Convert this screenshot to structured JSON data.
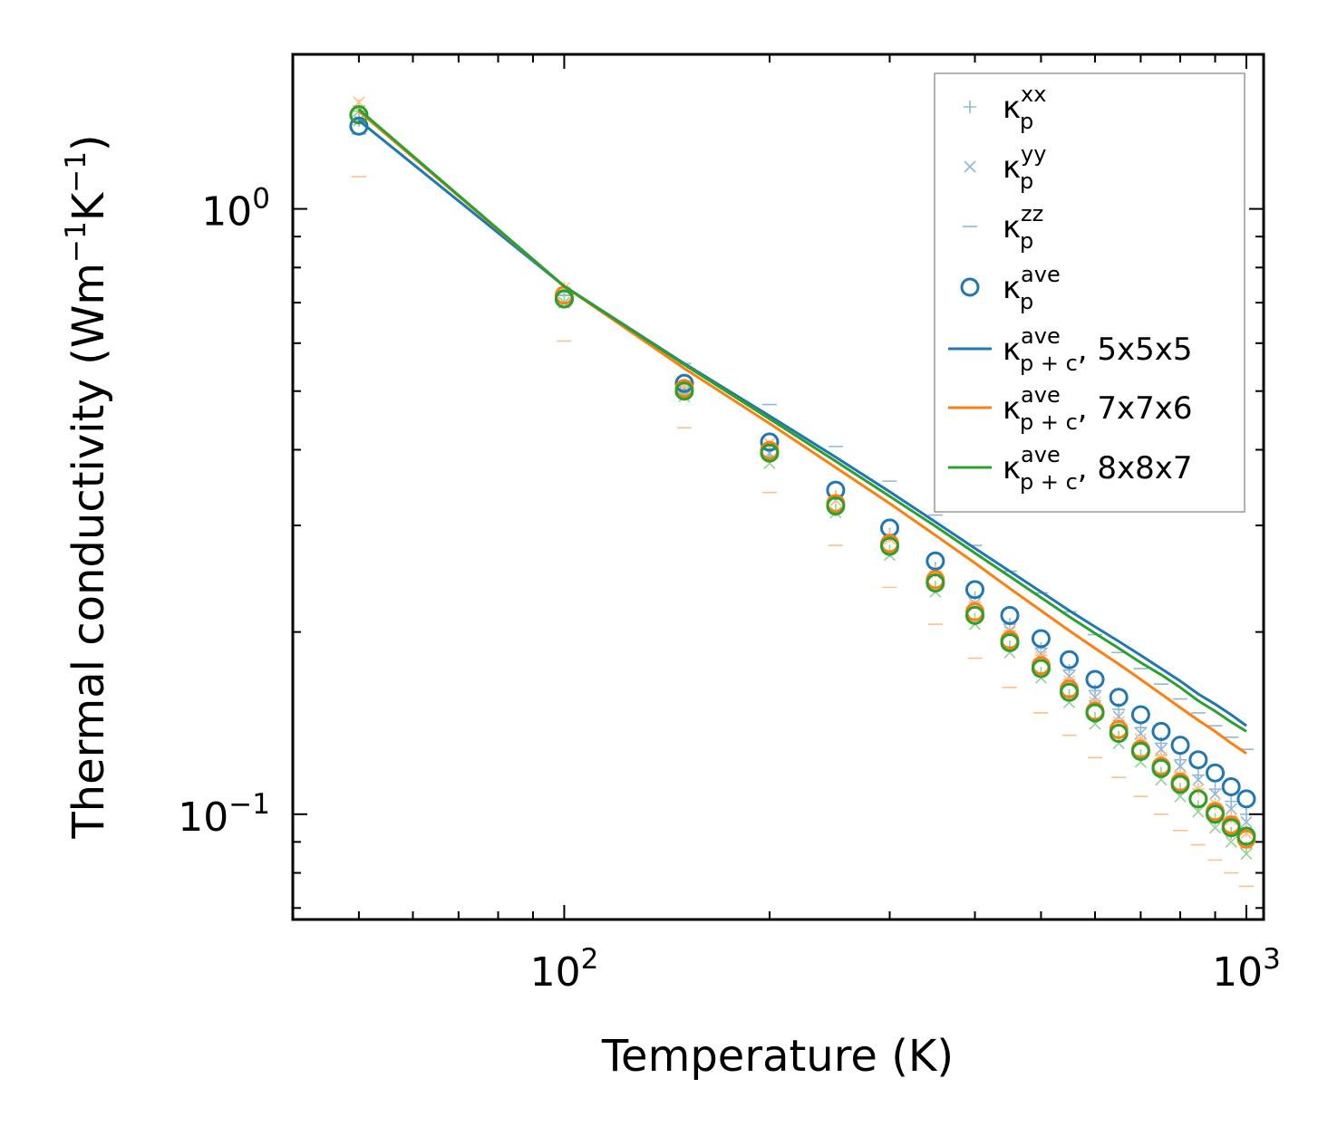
{
  "chart_data": {
    "type": "scatter",
    "xscale": "log",
    "yscale": "log",
    "xlabel": "Temperature (K)",
    "ylabel": {
      "text": "Thermal conductivity (Wm",
      "exp1": "−1",
      "mid": "K",
      "exp2": "−1",
      "close": ")"
    },
    "xlim": [
      40,
      1060
    ],
    "ylim": [
      0.067,
      1.8
    ],
    "x_ticks": [
      {
        "value": 100,
        "base": "10",
        "exp": "2"
      },
      {
        "value": 1000,
        "base": "10",
        "exp": "3"
      }
    ],
    "y_ticks": [
      {
        "value": 1.0,
        "base": "10",
        "exp": "0"
      },
      {
        "value": 0.1,
        "base": "10",
        "exp": "−1"
      }
    ],
    "temperatures": [
      50,
      100,
      150,
      200,
      250,
      300,
      350,
      400,
      450,
      500,
      550,
      600,
      650,
      700,
      750,
      800,
      850,
      900,
      950,
      1000
    ],
    "colors": {
      "blue": "#1f77b4",
      "orange": "#ff7f0e",
      "green": "#2ca02c",
      "blue_light": "#8fb8d9",
      "orange_light": "#ffbf86",
      "green_light": "#95d095"
    },
    "scatter": [
      {
        "component": "xx",
        "marker": "plus",
        "color": "#8fb8d9",
        "values": [
          1.4,
          0.72,
          0.505,
          0.4,
          0.335,
          0.29,
          0.255,
          0.228,
          0.206,
          0.188,
          0.173,
          0.16,
          0.149,
          0.139,
          0.131,
          0.123,
          0.116,
          0.11,
          0.105,
          0.1
        ]
      },
      {
        "component": "xx",
        "marker": "plus",
        "color": "#ffbf86",
        "values": [
          1.48,
          0.74,
          0.51,
          0.405,
          0.335,
          0.288,
          0.252,
          0.224,
          0.201,
          0.183,
          0.167,
          0.154,
          0.143,
          0.133,
          0.125,
          0.117,
          0.11,
          0.104,
          0.099,
          0.094
        ]
      },
      {
        "component": "xx",
        "marker": "plus",
        "color": "#95d095",
        "values": [
          1.45,
          0.72,
          0.495,
          0.39,
          0.318,
          0.272,
          0.237,
          0.21,
          0.189,
          0.171,
          0.157,
          0.144,
          0.134,
          0.125,
          0.117,
          0.11,
          0.103,
          0.098,
          0.093,
          0.088
        ]
      },
      {
        "component": "yy",
        "marker": "x",
        "color": "#8fb8d9",
        "values": [
          1.4,
          0.7,
          0.5,
          0.395,
          0.33,
          0.285,
          0.25,
          0.223,
          0.201,
          0.184,
          0.169,
          0.156,
          0.145,
          0.136,
          0.128,
          0.12,
          0.114,
          0.108,
          0.102,
          0.097
        ]
      },
      {
        "component": "yy",
        "marker": "x",
        "color": "#ffbf86",
        "values": [
          1.5,
          0.74,
          0.51,
          0.41,
          0.33,
          0.285,
          0.25,
          0.222,
          0.2,
          0.182,
          0.166,
          0.153,
          0.142,
          0.133,
          0.124,
          0.116,
          0.11,
          0.104,
          0.098,
          0.093
        ]
      },
      {
        "component": "yy",
        "marker": "x",
        "color": "#95d095",
        "values": [
          1.45,
          0.7,
          0.49,
          0.38,
          0.315,
          0.268,
          0.233,
          0.206,
          0.185,
          0.168,
          0.153,
          0.141,
          0.131,
          0.122,
          0.114,
          0.107,
          0.101,
          0.095,
          0.09,
          0.086
        ]
      },
      {
        "component": "zz",
        "marker": "dash",
        "color": "#8fb8d9",
        "values": [
          1.33,
          0.72,
          0.555,
          0.475,
          0.405,
          0.355,
          0.312,
          0.278,
          0.252,
          0.232,
          0.216,
          0.198,
          0.185,
          0.174,
          0.164,
          0.155,
          0.147,
          0.14,
          0.134,
          0.128
        ]
      },
      {
        "component": "zz",
        "marker": "dash",
        "color": "#ffbf86",
        "values": [
          1.13,
          0.605,
          0.435,
          0.34,
          0.278,
          0.237,
          0.206,
          0.181,
          0.162,
          0.147,
          0.135,
          0.124,
          0.115,
          0.107,
          0.1,
          0.094,
          0.089,
          0.084,
          0.08,
          0.076
        ]
      },
      {
        "component": "ave",
        "marker": "circle",
        "color": "#1f77b4",
        "values": [
          1.37,
          0.71,
          0.515,
          0.412,
          0.343,
          0.297,
          0.262,
          0.235,
          0.213,
          0.195,
          0.18,
          0.167,
          0.156,
          0.146,
          0.137,
          0.13,
          0.123,
          0.117,
          0.111,
          0.106
        ]
      },
      {
        "component": "ave",
        "marker": "circle",
        "color": "#ff7f0e",
        "values": [
          1.43,
          0.72,
          0.505,
          0.399,
          0.326,
          0.28,
          0.244,
          0.216,
          0.194,
          0.176,
          0.161,
          0.148,
          0.138,
          0.128,
          0.12,
          0.113,
          0.106,
          0.101,
          0.096,
          0.091
        ]
      },
      {
        "component": "ave",
        "marker": "circle",
        "color": "#2ca02c",
        "values": [
          1.43,
          0.71,
          0.5,
          0.395,
          0.323,
          0.277,
          0.241,
          0.213,
          0.192,
          0.174,
          0.159,
          0.147,
          0.136,
          0.127,
          0.119,
          0.112,
          0.106,
          0.1,
          0.095,
          0.092
        ]
      }
    ],
    "lines": [
      {
        "name": "5x5x5",
        "color": "#1f77b4",
        "values": [
          1.4,
          0.745,
          0.555,
          0.455,
          0.389,
          0.341,
          0.304,
          0.275,
          0.252,
          0.233,
          0.217,
          0.204,
          0.193,
          0.183,
          0.174,
          0.166,
          0.158,
          0.152,
          0.146,
          0.14
        ]
      },
      {
        "name": "7x7x6",
        "color": "#ff7f0e",
        "values": [
          1.45,
          0.745,
          0.545,
          0.442,
          0.374,
          0.326,
          0.289,
          0.26,
          0.236,
          0.217,
          0.201,
          0.188,
          0.177,
          0.167,
          0.158,
          0.15,
          0.143,
          0.137,
          0.131,
          0.126
        ]
      },
      {
        "name": "8x8x7",
        "color": "#2ca02c",
        "values": [
          1.46,
          0.745,
          0.553,
          0.45,
          0.383,
          0.335,
          0.299,
          0.27,
          0.247,
          0.228,
          0.212,
          0.199,
          0.188,
          0.178,
          0.17,
          0.162,
          0.154,
          0.148,
          0.142,
          0.137
        ]
      }
    ],
    "legend": {
      "position": "top-right",
      "items": [
        {
          "base": "κ",
          "sup": "xx",
          "sub": "p",
          "suffix": "",
          "marker": "plus",
          "color": "#8fb8d9"
        },
        {
          "base": "κ",
          "sup": "yy",
          "sub": "p",
          "suffix": "",
          "marker": "x",
          "color": "#8fb8d9"
        },
        {
          "base": "κ",
          "sup": "zz",
          "sub": "p",
          "suffix": "",
          "marker": "dash",
          "color": "#8fb8d9"
        },
        {
          "base": "κ",
          "sup": "ave",
          "sub": "p",
          "suffix": "",
          "marker": "circle",
          "color": "#1f77b4"
        },
        {
          "base": "κ",
          "sup": "ave",
          "sub": "p + c",
          "suffix": ", 5x5x5",
          "marker": "line",
          "color": "#1f77b4"
        },
        {
          "base": "κ",
          "sup": "ave",
          "sub": "p + c",
          "suffix": ", 7x7x6",
          "marker": "line",
          "color": "#ff7f0e"
        },
        {
          "base": "κ",
          "sup": "ave",
          "sub": "p + c",
          "suffix": ", 8x8x7",
          "marker": "line",
          "color": "#2ca02c"
        }
      ]
    }
  }
}
